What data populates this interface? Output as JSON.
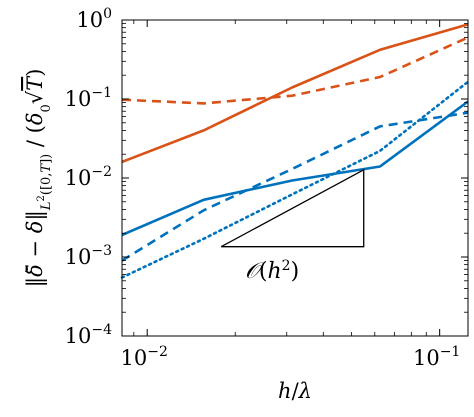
{
  "chart_data": {
    "type": "line",
    "title": "",
    "xlabel": "h/λ",
    "ylabel": "‖δ̆ − δ‖L²([0,T]) / (δ₀√T)",
    "xscale": "log",
    "yscale": "log",
    "xlim": [
      0.0082,
      0.125
    ],
    "ylim": [
      0.0001,
      1
    ],
    "x_ticks": [
      {
        "value": 0.01,
        "label": "10",
        "exp": "−2"
      },
      {
        "value": 0.1,
        "label": "10",
        "exp": "−1"
      }
    ],
    "y_ticks": [
      {
        "value": 1,
        "label": "10",
        "exp": "0"
      },
      {
        "value": 0.1,
        "label": "10",
        "exp": "−1"
      },
      {
        "value": 0.01,
        "label": "10",
        "exp": "−2"
      },
      {
        "value": 0.001,
        "label": "10",
        "exp": "−3"
      },
      {
        "value": 0.0001,
        "label": "10",
        "exp": "−4"
      }
    ],
    "grid": false,
    "legend": "none",
    "series": [
      {
        "color": "#d95319",
        "dash": "solid",
        "x": [
          0.0082,
          0.0156,
          0.0313,
          0.0625,
          0.125
        ],
        "y": [
          0.016,
          0.04,
          0.14,
          0.42,
          0.88
        ]
      },
      {
        "color": "#d95319",
        "dash": "dashed",
        "x": [
          0.0082,
          0.0156,
          0.0313,
          0.0625,
          0.125
        ],
        "y": [
          0.098,
          0.088,
          0.11,
          0.19,
          0.6
        ]
      },
      {
        "color": "#0072bd",
        "dash": "solid",
        "x": [
          0.0082,
          0.0156,
          0.0313,
          0.0625,
          0.125
        ],
        "y": [
          0.0019,
          0.0053,
          0.0093,
          0.014,
          0.093
        ]
      },
      {
        "color": "#0072bd",
        "dash": "dashed",
        "x": [
          0.0082,
          0.0156,
          0.0313,
          0.0625,
          0.125
        ],
        "y": [
          0.0009,
          0.0039,
          0.013,
          0.045,
          0.067
        ]
      },
      {
        "color": "#0072bd",
        "dash": "dotted",
        "x": [
          0.0082,
          0.0156,
          0.0313,
          0.0625,
          0.125
        ],
        "y": [
          0.00055,
          0.0017,
          0.0062,
          0.022,
          0.165
        ]
      }
    ],
    "triangle": {
      "label": "O(h²)",
      "x0": 0.0179,
      "x1": 0.055,
      "y_base": 0.00135,
      "y_top": 0.0127
    }
  }
}
